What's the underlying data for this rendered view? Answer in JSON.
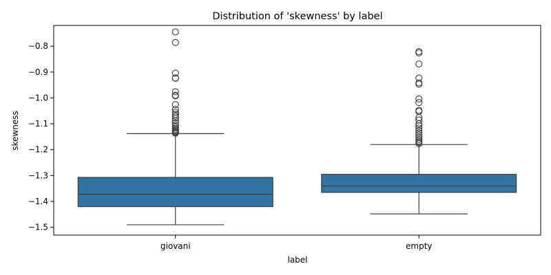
{
  "chart_data": {
    "type": "boxplot",
    "title": "Distribution of 'skewness' by label",
    "xlabel": "label",
    "ylabel": "skewness",
    "ylim": [
      -1.53,
      -0.72
    ],
    "yticks": [
      -1.5,
      -1.4,
      -1.3,
      -1.2,
      -1.1,
      -1.0,
      -0.9,
      -0.8
    ],
    "ytick_labels": [
      "−1.5",
      "−1.4",
      "−1.3",
      "−1.2",
      "−1.1",
      "−1.0",
      "−0.9",
      "−0.8"
    ],
    "grid": false,
    "legend": "none",
    "box_color": "#3274a1",
    "line_color": "#3d3d3d",
    "series": [
      {
        "category": "giovani",
        "whisker_low": -1.49,
        "q1": -1.42,
        "median": -1.372,
        "q3": -1.307,
        "whisker_high": -1.138,
        "outliers": [
          -0.745,
          -0.786,
          -0.904,
          -0.923,
          -0.924,
          -0.976,
          -0.99,
          -0.992,
          -1.026,
          -1.044,
          -1.055,
          -1.063,
          -1.07,
          -1.077,
          -1.087,
          -1.097,
          -1.105,
          -1.112,
          -1.117,
          -1.122,
          -1.126,
          -1.13,
          -1.133,
          -1.136
        ]
      },
      {
        "category": "empty",
        "whisker_low": -1.448,
        "q1": -1.365,
        "median": -1.34,
        "q3": -1.295,
        "whisker_high": -1.18,
        "outliers": [
          -0.821,
          -0.826,
          -0.869,
          -0.923,
          -0.942,
          -0.947,
          -1.004,
          -1.018,
          -1.048,
          -1.052,
          -1.076,
          -1.085,
          -1.1,
          -1.108,
          -1.117,
          -1.126,
          -1.135,
          -1.143,
          -1.152,
          -1.161,
          -1.167,
          -1.172,
          -1.177
        ]
      }
    ]
  }
}
